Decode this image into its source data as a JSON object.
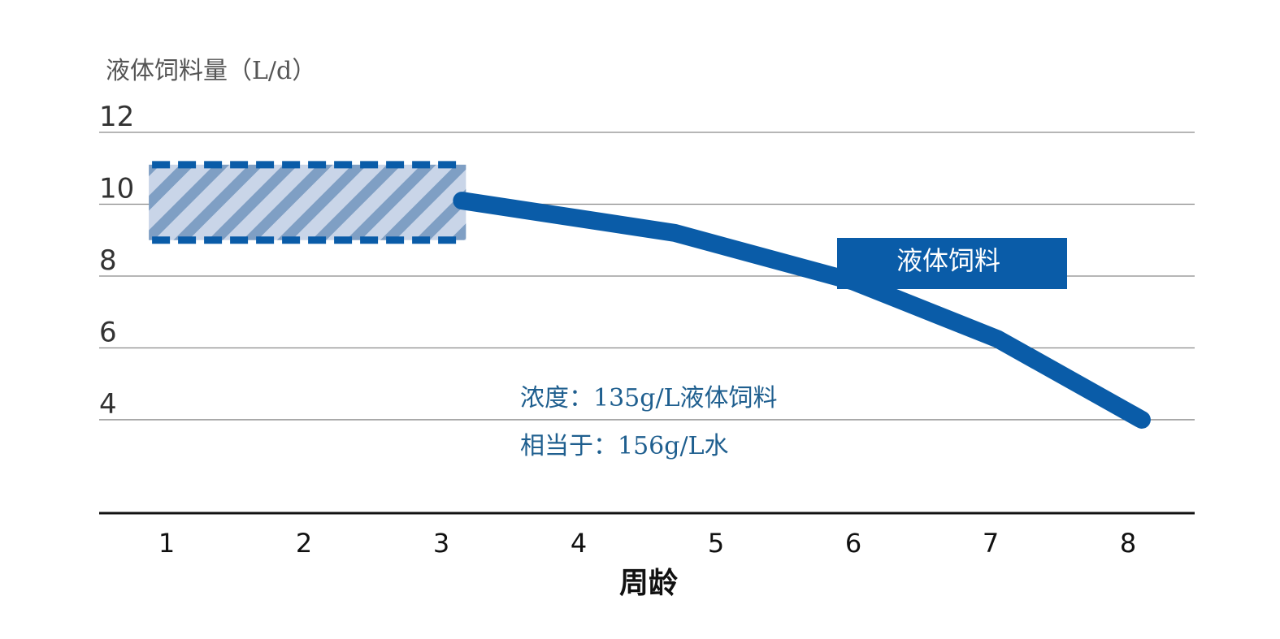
{
  "chart_data": {
    "type": "line",
    "ylabel": "液体饲料量（L/d）",
    "xlabel": "周龄",
    "x": [
      1,
      2,
      3,
      4,
      5,
      6,
      7,
      8
    ],
    "xticks": [
      "1",
      "2",
      "3",
      "4",
      "5",
      "6",
      "7",
      "8"
    ],
    "yticks": [
      "12",
      "10",
      "8",
      "6",
      "4"
    ],
    "ylim": [
      1.4,
      12
    ],
    "grid": true,
    "series": [
      {
        "name": "液体饲料",
        "x": [
          3.15,
          4.7,
          6.0,
          7.05,
          8.1
        ],
        "values": [
          10.1,
          9.2,
          7.85,
          6.25,
          4.0
        ],
        "color": "#0a5ca8"
      }
    ],
    "range_band": {
      "x": [
        0.9,
        3.15
      ],
      "y": [
        9.0,
        11.1
      ],
      "fill": "#c9d5e8",
      "stripe": "#7f9fc4",
      "border": "#0a5ca8"
    },
    "legend": {
      "label": "液体饲料",
      "position": "right",
      "fill": "#0a5ca8"
    },
    "annotations": [
      "浓度：135g/L液体饲料",
      "相当于：156g/L水"
    ]
  }
}
